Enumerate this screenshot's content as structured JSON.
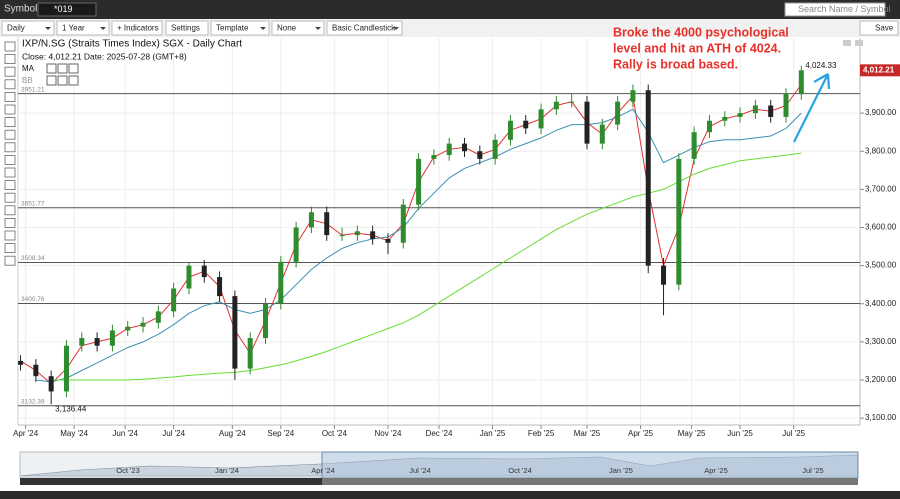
{
  "toolbar": {
    "symbols_label": "Symbols:",
    "symbol": "*019",
    "search": "Search Name / Symbol",
    "period": "Daily",
    "range": "1 Year",
    "indicators": "+ Indicators",
    "settings": "Settings",
    "template": "Template",
    "none": "None",
    "style": "Basic Candlestick",
    "save": "Save"
  },
  "chart_data": {
    "type": "candlestick",
    "title": "IXP/N.SG (Straits Times Index) SGX - Daily Chart",
    "info": "Close: 4,012.21  Date: 2025-07-28 (GMT+8)",
    "indicator_labels": [
      "MA",
      "BB"
    ],
    "up_color": "#2e8b2e",
    "down_color": "#222222",
    "x": [
      1,
      7,
      13,
      19,
      25,
      31,
      37,
      43,
      49,
      55,
      61,
      67,
      73,
      79,
      85,
      91,
      97,
      103,
      109,
      115,
      121,
      127,
      133,
      139,
      145,
      151,
      157,
      163,
      169,
      175,
      181,
      187,
      193,
      199,
      205,
      211,
      217,
      223,
      229,
      235,
      241,
      247,
      253,
      259,
      265,
      271,
      277,
      283,
      289,
      295,
      301,
      307
    ],
    "ohlc": [
      [
        3250,
        3265,
        3225,
        3240
      ],
      [
        3240,
        3255,
        3195,
        3210
      ],
      [
        3210,
        3225,
        3136.44,
        3170
      ],
      [
        3170,
        3305,
        3155,
        3290
      ],
      [
        3290,
        3325,
        3275,
        3310
      ],
      [
        3310,
        3325,
        3275,
        3290
      ],
      [
        3290,
        3345,
        3275,
        3330
      ],
      [
        3330,
        3355,
        3315,
        3340
      ],
      [
        3340,
        3365,
        3325,
        3350
      ],
      [
        3350,
        3395,
        3335,
        3380
      ],
      [
        3380,
        3455,
        3365,
        3440
      ],
      [
        3440,
        3510,
        3425,
        3500
      ],
      [
        3500,
        3515,
        3455,
        3470
      ],
      [
        3470,
        3485,
        3405,
        3420
      ],
      [
        3420,
        3435,
        3200,
        3230
      ],
      [
        3230,
        3325,
        3215,
        3310
      ],
      [
        3310,
        3415,
        3295,
        3400
      ],
      [
        3400,
        3525,
        3385,
        3510
      ],
      [
        3510,
        3615,
        3495,
        3600
      ],
      [
        3600,
        3655,
        3585,
        3640
      ],
      [
        3640,
        3655,
        3565,
        3580
      ],
      [
        3580,
        3600,
        3565,
        3580
      ],
      [
        3580,
        3605,
        3565,
        3590
      ],
      [
        3590,
        3605,
        3555,
        3570
      ],
      [
        3570,
        3585,
        3530,
        3560
      ],
      [
        3560,
        3675,
        3545,
        3660
      ],
      [
        3660,
        3795,
        3645,
        3780
      ],
      [
        3780,
        3805,
        3765,
        3790
      ],
      [
        3790,
        3835,
        3775,
        3820
      ],
      [
        3820,
        3835,
        3785,
        3800
      ],
      [
        3800,
        3815,
        3765,
        3780
      ],
      [
        3780,
        3845,
        3765,
        3830
      ],
      [
        3830,
        3895,
        3815,
        3880
      ],
      [
        3880,
        3895,
        3845,
        3860
      ],
      [
        3860,
        3925,
        3845,
        3910
      ],
      [
        3910,
        3945,
        3895,
        3930
      ],
      [
        3930,
        3950,
        3915,
        3930
      ],
      [
        3930,
        3945,
        3805,
        3820
      ],
      [
        3820,
        3885,
        3805,
        3870
      ],
      [
        3870,
        3945,
        3855,
        3930
      ],
      [
        3930,
        3975,
        3915,
        3960
      ],
      [
        3960,
        3975,
        3480,
        3500
      ],
      [
        3500,
        3520,
        3370,
        3450
      ],
      [
        3450,
        3795,
        3435,
        3780
      ],
      [
        3780,
        3865,
        3765,
        3850
      ],
      [
        3850,
        3895,
        3835,
        3880
      ],
      [
        3880,
        3905,
        3865,
        3890
      ],
      [
        3890,
        3915,
        3875,
        3900
      ],
      [
        3900,
        3935,
        3885,
        3920
      ],
      [
        3920,
        3935,
        3875,
        3890
      ],
      [
        3890,
        3965,
        3875,
        3950
      ],
      [
        3950,
        4024.33,
        3935,
        4012.21
      ]
    ],
    "ma_lines": [
      {
        "color": "#e03030",
        "values": [
          3250,
          3225,
          3190,
          3230,
          3290,
          3300,
          3310,
          3335,
          3345,
          3365,
          3410,
          3470,
          3485,
          3445,
          3330,
          3270,
          3355,
          3455,
          3555,
          3620,
          3610,
          3580,
          3585,
          3580,
          3565,
          3610,
          3720,
          3785,
          3805,
          3810,
          3790,
          3805,
          3855,
          3870,
          3885,
          3920,
          3930,
          3875,
          3845,
          3900,
          3945,
          3700,
          3500,
          3600,
          3780,
          3865,
          3885,
          3895,
          3910,
          3905,
          3920,
          3975
        ]
      },
      {
        "color": "#3a8fb0",
        "values": [
          null,
          3200,
          3195,
          3205,
          3225,
          3245,
          3265,
          3285,
          3300,
          3320,
          3345,
          3375,
          3395,
          3405,
          3385,
          3375,
          3385,
          3410,
          3450,
          3490,
          3520,
          3545,
          3560,
          3570,
          3575,
          3600,
          3650,
          3690,
          3730,
          3755,
          3770,
          3785,
          3805,
          3820,
          3835,
          3855,
          3870,
          3870,
          3875,
          3890,
          3910,
          3850,
          3770,
          3790,
          3810,
          3825,
          3830,
          3830,
          3835,
          3840,
          3860,
          3900
        ]
      },
      {
        "color": "#66dd33",
        "values": [
          null,
          null,
          3200,
          3200,
          3200,
          3200,
          3200,
          3200,
          3202,
          3205,
          3208,
          3212,
          3215,
          3218,
          3220,
          3225,
          3232,
          3240,
          3250,
          3262,
          3275,
          3290,
          3305,
          3320,
          3335,
          3350,
          3370,
          3395,
          3420,
          3445,
          3470,
          3495,
          3520,
          3545,
          3570,
          3595,
          3615,
          3635,
          3650,
          3665,
          3680,
          3690,
          3700,
          3720,
          3740,
          3755,
          3765,
          3775,
          3780,
          3785,
          3790,
          3795
        ]
      }
    ],
    "hlines": [
      {
        "value": 3951.21,
        "label": "3951.21"
      },
      {
        "value": 3651.77,
        "label": "3651.77"
      },
      {
        "value": 3508.34,
        "label": "3508.34"
      },
      {
        "value": 3400.76,
        "label": "3400.76"
      },
      {
        "value": 3132.39,
        "label": "3132.39"
      }
    ],
    "high_marker": {
      "value": 4024.33,
      "label": "4,024.33"
    },
    "low_marker": {
      "value": 3136.44,
      "label": "3,136.44"
    },
    "last_price": {
      "value": 4012.21,
      "label": "4,012.21"
    },
    "annotation": [
      "Broke the 4000 psychological",
      "level  and hit an ATH of 4024.",
      "Rally is broad based."
    ],
    "xlim": [
      0,
      330
    ],
    "ylim": [
      3082,
      4097
    ],
    "xticks": [
      {
        "value": 3,
        "label": "Apr '24"
      },
      {
        "value": 22,
        "label": "May '24"
      },
      {
        "value": 42,
        "label": "Jun '24"
      },
      {
        "value": 61,
        "label": "Jul '24"
      },
      {
        "value": 84,
        "label": "Aug '24"
      },
      {
        "value": 103,
        "label": "Sep '24"
      },
      {
        "value": 124,
        "label": "Oct '24"
      },
      {
        "value": 145,
        "label": "Nov '24"
      },
      {
        "value": 165,
        "label": "Dec '24"
      },
      {
        "value": 186,
        "label": "Jan '25"
      },
      {
        "value": 205,
        "label": "Feb '25"
      },
      {
        "value": 223,
        "label": "Mar '25"
      },
      {
        "value": 244,
        "label": "Apr '25"
      },
      {
        "value": 264,
        "label": "May '25"
      },
      {
        "value": 283,
        "label": "Jun '25"
      },
      {
        "value": 304,
        "label": "Jul '25"
      }
    ],
    "yticks": [
      {
        "value": 3100,
        "label": "3,100.00"
      },
      {
        "value": 3200,
        "label": "3,200.00"
      },
      {
        "value": 3300,
        "label": "3,300.00"
      },
      {
        "value": 3400,
        "label": "3,400.00"
      },
      {
        "value": 3500,
        "label": "3,500.00"
      },
      {
        "value": 3600,
        "label": "3,600.00"
      },
      {
        "value": 3700,
        "label": "3,700.00"
      },
      {
        "value": 3800,
        "label": "3,800.00"
      },
      {
        "value": 3900,
        "label": "3,900.00"
      }
    ]
  },
  "navigator": {
    "labels": [
      "Oct '23",
      "Jan '24",
      "Apr '24",
      "Jul '24",
      "Oct '24",
      "Jan '25",
      "Apr '25",
      "Jul '25"
    ]
  }
}
